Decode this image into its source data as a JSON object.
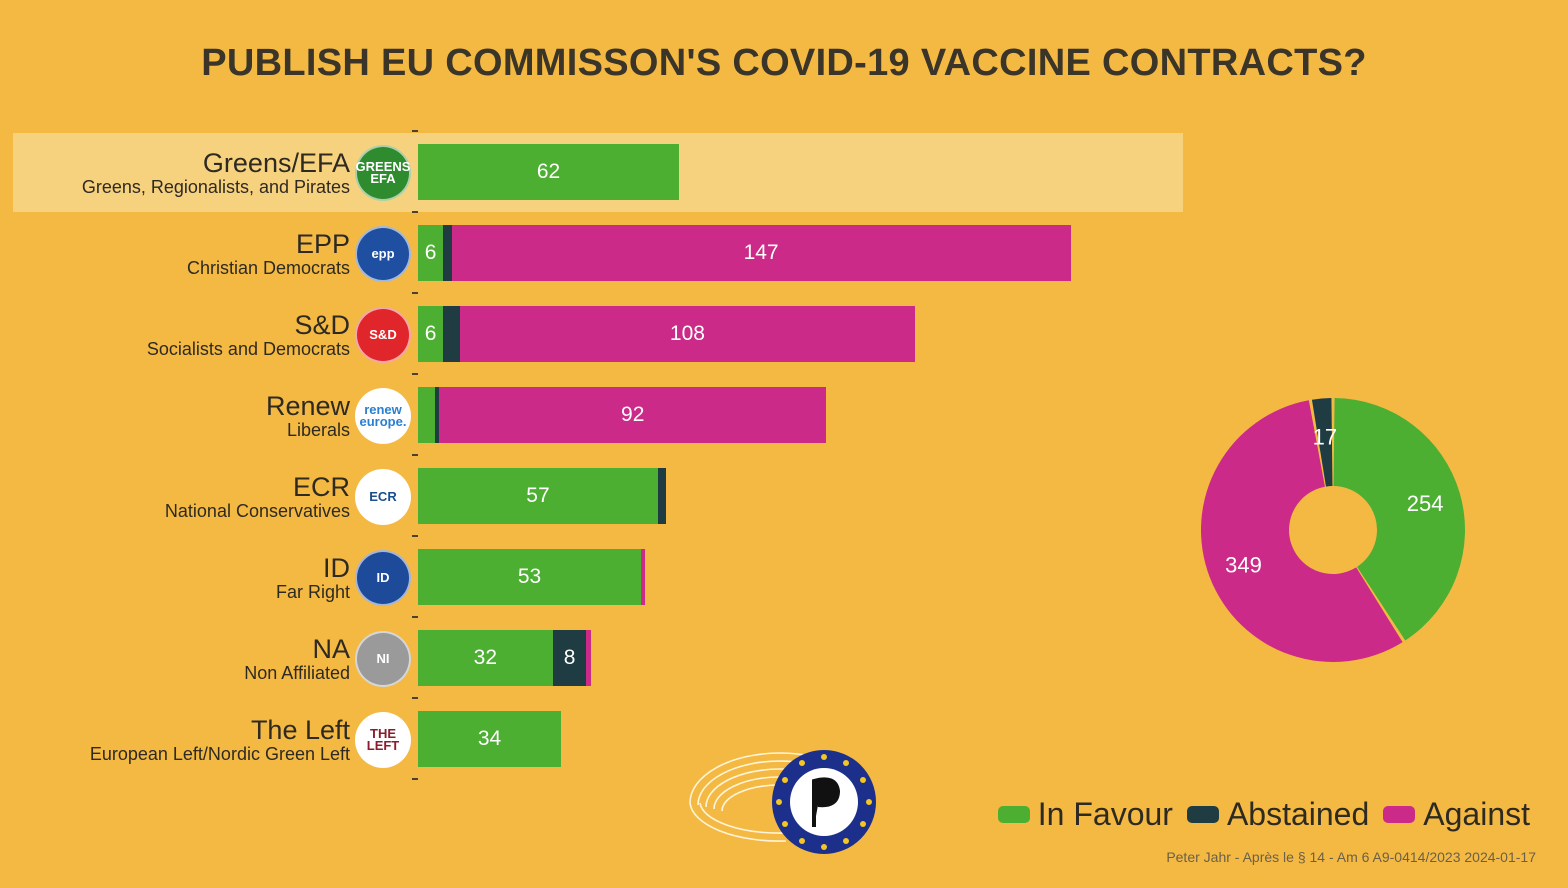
{
  "chart_data": {
    "type": "bar",
    "orientation": "horizontal",
    "stacked": true,
    "title": "PUBLISH EU COMMISSON'S COVID-19 VACCINE CONTRACTS?",
    "series_names": [
      "In Favour",
      "Abstained",
      "Against"
    ],
    "colors": {
      "In Favour": "#4caf32",
      "Abstained": "#1e3c42",
      "Against": "#cc2a88"
    },
    "groups": [
      {
        "name": "Greens/EFA",
        "subtitle": "Greens, Regionalists, and Pirates",
        "logo": "GREENS EFA",
        "logo_bg": "#2e8b2e",
        "logo_fg": "#ffffff",
        "values": [
          62,
          0,
          0
        ],
        "highlight": true
      },
      {
        "name": "EPP",
        "subtitle": "Christian Democrats",
        "logo": "epp",
        "logo_bg": "#1f4fa0",
        "logo_fg": "#ffffff",
        "values": [
          6,
          2,
          147
        ]
      },
      {
        "name": "S&D",
        "subtitle": "Socialists and Democrats",
        "logo": "S&D",
        "logo_bg": "#e0262b",
        "logo_fg": "#ffffff",
        "values": [
          6,
          4,
          108
        ]
      },
      {
        "name": "Renew",
        "subtitle": "Liberals",
        "logo": "renew europe.",
        "logo_bg": "#ffffff",
        "logo_fg": "#2a7fd0",
        "values": [
          4,
          1,
          92
        ]
      },
      {
        "name": "ECR",
        "subtitle": "National Conservatives",
        "logo": "ECR",
        "logo_bg": "#ffffff",
        "logo_fg": "#1a4f8a",
        "values": [
          57,
          2,
          0
        ]
      },
      {
        "name": "ID",
        "subtitle": "Far Right",
        "logo": "ID",
        "logo_bg": "#1e4a9a",
        "logo_fg": "#ffffff",
        "values": [
          53,
          0,
          1
        ]
      },
      {
        "name": "NA",
        "subtitle": "Non Affiliated",
        "logo": "NI",
        "logo_bg": "#9a9a9a",
        "logo_fg": "#ffffff",
        "values": [
          32,
          8,
          1
        ]
      },
      {
        "name": "The Left",
        "subtitle": "European Left/Nordic Green Left",
        "logo": "THE LEFT",
        "logo_bg": "#ffffff",
        "logo_fg": "#8a1c2c",
        "values": [
          34,
          0,
          0
        ]
      }
    ],
    "bar_labels_min_value": 5,
    "totals": {
      "type": "pie",
      "donut": true,
      "In Favour": 254,
      "Abstained": 17,
      "Against": 349
    },
    "legend": {
      "position": "bottom-right",
      "entries": [
        "In Favour",
        "Abstained",
        "Against"
      ]
    }
  },
  "credit": "Peter Jahr - Après le § 14 - Am 6 A9-0414/2023 2024-01-17"
}
